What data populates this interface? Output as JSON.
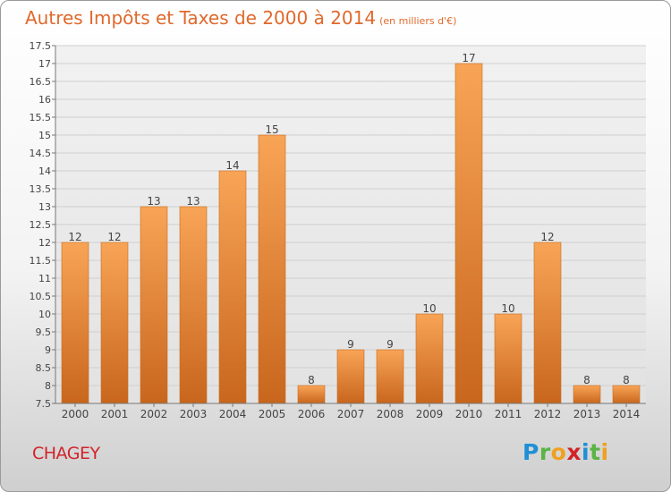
{
  "title": "Autres Impôts et Taxes de 2000 à 2014",
  "subtitle": "(en milliers d'€)",
  "place": "CHAGEY",
  "logo": {
    "letters": [
      "P",
      "r",
      "o",
      "x",
      "i",
      "t",
      "i"
    ],
    "colors": [
      "#1f8fd6",
      "#5bb445",
      "#f0a020",
      "#d2232a",
      "#1f8fd6",
      "#5bb445",
      "#f0a020"
    ]
  },
  "colors": {
    "bar_light": "#f8a456",
    "bar_dark": "#c8661d",
    "accent": "#e0692c"
  },
  "chart_data": {
    "type": "bar",
    "categories": [
      "2000",
      "2001",
      "2002",
      "2003",
      "2004",
      "2005",
      "2006",
      "2007",
      "2008",
      "2009",
      "2010",
      "2011",
      "2012",
      "2013",
      "2014"
    ],
    "values": [
      12,
      12,
      13,
      13,
      14,
      15,
      8,
      9,
      9,
      10,
      17,
      10,
      12,
      8,
      8
    ],
    "data_labels": [
      "12",
      "12",
      "13",
      "13",
      "14",
      "15",
      "8",
      "9",
      "9",
      "10",
      "17",
      "10",
      "12",
      "8",
      "8"
    ],
    "ylim": [
      7.5,
      17.5
    ],
    "yticks": [
      "7.5",
      "8",
      "8.5",
      "9",
      "9.5",
      "10",
      "10.5",
      "11",
      "11.5",
      "12",
      "12.5",
      "13",
      "13.5",
      "14",
      "14.5",
      "15",
      "15.5",
      "16",
      "16.5",
      "17",
      "17.5"
    ],
    "grid": true
  }
}
